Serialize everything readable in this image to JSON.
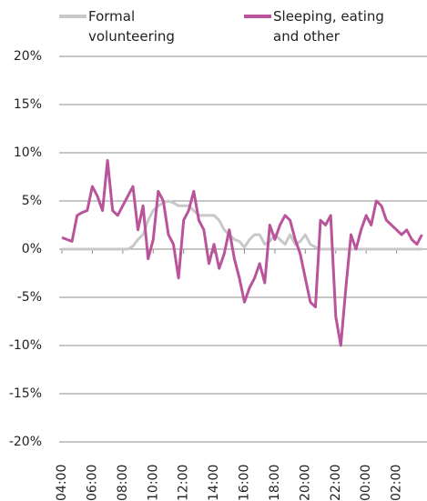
{
  "chart_data": {
    "type": "line",
    "categories": [
      "04:00",
      null,
      null,
      null,
      null,
      null,
      "06:00",
      null,
      null,
      null,
      null,
      null,
      "08:00",
      null,
      null,
      null,
      null,
      null,
      "10:00",
      null,
      null,
      null,
      null,
      null,
      "12:00",
      null,
      null,
      null,
      null,
      null,
      "14:00",
      null,
      null,
      null,
      null,
      null,
      "16:00",
      null,
      null,
      null,
      null,
      null,
      "18:00",
      null,
      null,
      null,
      null,
      null,
      "20:00",
      null,
      null,
      null,
      null,
      null,
      "22:00",
      null,
      null,
      null,
      null,
      null,
      "00:00",
      null,
      null,
      null,
      null,
      null,
      "02:00",
      null,
      null,
      null,
      null,
      null
    ],
    "series": [
      {
        "name": "Formal volunteering",
        "color": "#c8c8c8",
        "values": [
          0,
          0,
          0,
          0,
          0,
          0,
          0,
          0,
          0,
          0,
          0,
          0,
          0,
          0,
          0.3,
          1.0,
          1.5,
          3.0,
          4.0,
          4.5,
          4.8,
          5.0,
          4.8,
          4.5,
          4.5,
          4.5,
          4.0,
          3.5,
          3.5,
          3.5,
          3.5,
          3.0,
          2.0,
          1.5,
          1.0,
          0.8,
          0.2,
          1.0,
          1.5,
          1.5,
          0.5,
          0.8,
          1.5,
          1.0,
          0.5,
          1.5,
          0.5,
          0.8,
          1.5,
          0.5,
          0.2,
          0,
          0,
          0,
          0,
          0,
          0,
          0,
          0,
          0,
          0,
          0,
          0,
          0,
          0,
          0,
          0,
          0,
          0,
          0,
          0,
          0
        ]
      },
      {
        "name": "Sleeping, eating and other",
        "color": "#b9549b",
        "values": [
          1.2,
          1.0,
          0.8,
          3.5,
          3.8,
          4.0,
          6.5,
          5.5,
          4.0,
          9.2,
          4.0,
          3.5,
          4.5,
          5.5,
          6.5,
          2.0,
          4.5,
          -1.0,
          1.0,
          6.0,
          5.0,
          1.5,
          0.5,
          -3.0,
          3.0,
          4.0,
          6.0,
          3.0,
          2.0,
          -1.5,
          0.5,
          -2.0,
          -0.5,
          2.0,
          -1.0,
          -3.0,
          -5.5,
          -4.0,
          -3.0,
          -1.5,
          -3.5,
          2.5,
          1.0,
          2.5,
          3.5,
          3.0,
          1.0,
          -0.5,
          -3.0,
          -5.5,
          -6.0,
          3.0,
          2.5,
          3.5,
          -7.0,
          -10.0,
          -4.0,
          1.5,
          0.0,
          2.0,
          3.5,
          2.5,
          5.0,
          4.5,
          3.0,
          2.5,
          2.0,
          1.5,
          2.0,
          1.0,
          0.5,
          1.5
        ]
      }
    ],
    "ylim": [
      -20,
      20
    ],
    "yticks": [
      {
        "value": -20,
        "label": "-20%"
      },
      {
        "value": -15,
        "label": "-15%"
      },
      {
        "value": -10,
        "label": "-10%"
      },
      {
        "value": -5,
        "label": "-5%"
      },
      {
        "value": 0,
        "label": "0%"
      },
      {
        "value": 5,
        "label": "5%"
      },
      {
        "value": 10,
        "label": "10%"
      },
      {
        "value": 15,
        "label": "15%"
      },
      {
        "value": 20,
        "label": "20%"
      }
    ],
    "grid": true,
    "legend": "top"
  }
}
